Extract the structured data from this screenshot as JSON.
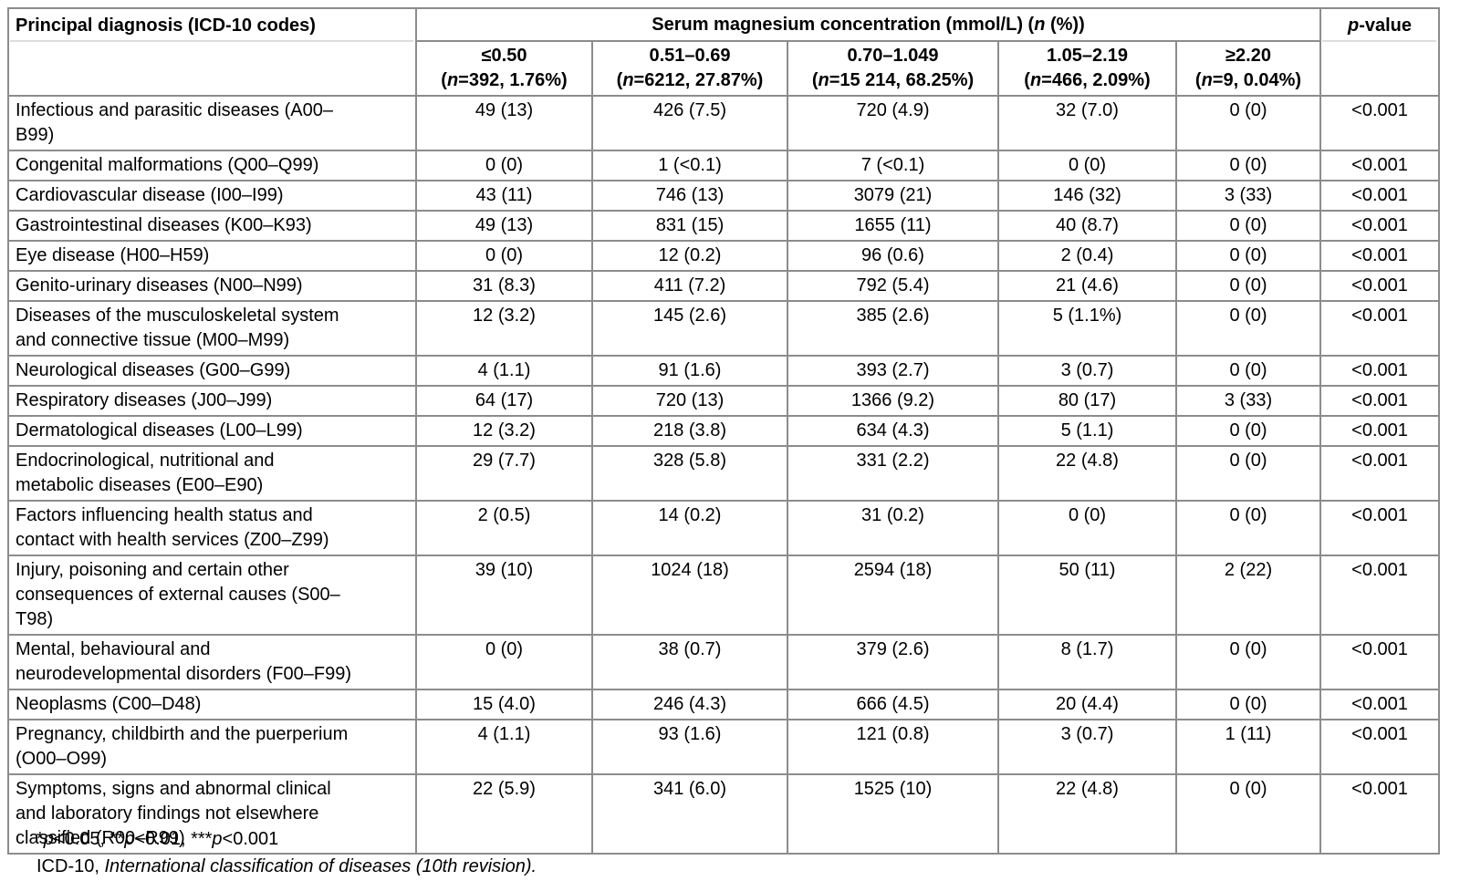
{
  "table": {
    "corner_header": "Principal diagnosis (ICD-10 codes)",
    "group_header": "Serum magnesium concentration (mmol/L) (_n_ (%))",
    "pvalue_header": "_p_-value",
    "columns": [
      "≤0.50\n(_n_=392, 1.76%)",
      "0.51–0.69\n(_n_=6212, 27.87%)",
      "0.70–1.049\n(_n_=15 214, 68.25%)",
      "1.05–2.19\n(_n_=466, 2.09%)",
      "≥2.20\n(_n_=9, 0.04%)"
    ],
    "rows": [
      {
        "diagnosis": "Infectious and parasitic diseases (A00–\nB99)",
        "values": [
          "49 (13)",
          "426 (7.5)",
          "720 (4.9)",
          "32 (7.0)",
          "0 (0)"
        ],
        "pvalue": "<0.001"
      },
      {
        "diagnosis": "Congenital malformations (Q00–Q99)",
        "values": [
          "0 (0)",
          "1 (<0.1)",
          "7 (<0.1)",
          "0 (0)",
          "0 (0)"
        ],
        "pvalue": "<0.001"
      },
      {
        "diagnosis": "Cardiovascular disease (I00–I99)",
        "values": [
          "43 (11)",
          "746 (13)",
          "3079 (21)",
          "146 (32)",
          "3 (33)"
        ],
        "pvalue": "<0.001"
      },
      {
        "diagnosis": "Gastrointestinal diseases (K00–K93)",
        "values": [
          "49 (13)",
          "831 (15)",
          "1655 (11)",
          "40 (8.7)",
          "0 (0)"
        ],
        "pvalue": "<0.001"
      },
      {
        "diagnosis": "Eye disease (H00–H59)",
        "values": [
          "0 (0)",
          "12 (0.2)",
          "96 (0.6)",
          "2 (0.4)",
          "0 (0)"
        ],
        "pvalue": "<0.001"
      },
      {
        "diagnosis": "Genito-urinary diseases (N00–N99)",
        "values": [
          "31 (8.3)",
          "411 (7.2)",
          "792 (5.4)",
          "21 (4.6)",
          "0 (0)"
        ],
        "pvalue": "<0.001"
      },
      {
        "diagnosis": "Diseases of the musculoskeletal system\nand connective tissue (M00–M99)",
        "values": [
          "12 (3.2)",
          "145 (2.6)",
          "385 (2.6)",
          "5 (1.1%)",
          "0 (0)"
        ],
        "pvalue": "<0.001"
      },
      {
        "diagnosis": "Neurological diseases (G00–G99)",
        "values": [
          "4 (1.1)",
          "91 (1.6)",
          "393 (2.7)",
          "3 (0.7)",
          "0 (0)"
        ],
        "pvalue": "<0.001"
      },
      {
        "diagnosis": "Respiratory diseases (J00–J99)",
        "values": [
          "64 (17)",
          "720 (13)",
          "1366 (9.2)",
          "80 (17)",
          "3 (33)"
        ],
        "pvalue": "<0.001"
      },
      {
        "diagnosis": "Dermatological diseases (L00–L99)",
        "values": [
          "12 (3.2)",
          "218 (3.8)",
          "634 (4.3)",
          "5 (1.1)",
          "0 (0)"
        ],
        "pvalue": "<0.001"
      },
      {
        "diagnosis": "Endocrinological, nutritional and\nmetabolic diseases (E00–E90)",
        "values": [
          "29 (7.7)",
          "328 (5.8)",
          "331 (2.2)",
          "22 (4.8)",
          "0 (0)"
        ],
        "pvalue": "<0.001"
      },
      {
        "diagnosis": "Factors influencing health status and\ncontact with health services (Z00–Z99)",
        "values": [
          "2 (0.5)",
          "14 (0.2)",
          "31 (0.2)",
          "0 (0)",
          "0 (0)"
        ],
        "pvalue": "<0.001"
      },
      {
        "diagnosis": "Injury, poisoning and certain other\nconsequences of external causes (S00–\nT98)",
        "values": [
          "39 (10)",
          "1024 (18)",
          "2594 (18)",
          "50 (11)",
          "2 (22)"
        ],
        "pvalue": "<0.001"
      },
      {
        "diagnosis": "Mental, behavioural and\nneurodevelopmental disorders (F00–F99)",
        "values": [
          "0 (0)",
          "38 (0.7)",
          "379 (2.6)",
          "8 (1.7)",
          "0 (0)"
        ],
        "pvalue": "<0.001"
      },
      {
        "diagnosis": "Neoplasms (C00–D48)",
        "values": [
          "15 (4.0)",
          "246 (4.3)",
          "666 (4.5)",
          "20 (4.4)",
          "0 (0)"
        ],
        "pvalue": "<0.001"
      },
      {
        "diagnosis": "Pregnancy, childbirth and the puerperium\n(O00–O99)",
        "values": [
          "4 (1.1)",
          "93 (1.6)",
          "121 (0.8)",
          "3 (0.7)",
          "1 (11)"
        ],
        "pvalue": "<0.001"
      },
      {
        "diagnosis": "Symptoms, signs and abnormal clinical\nand laboratory findings not elsewhere\nclassified (R00–R99)",
        "values": [
          "22 (5.9)",
          "341 (6.0)",
          "1525 (10)",
          "22 (4.8)",
          "0 (0)"
        ],
        "pvalue": "<0.001"
      }
    ]
  },
  "footnotes": [
    "*_p_<0.05, **_p_<0.01, ***_p_<0.001",
    "ICD-10, _International classification of diseases (10th revision)._"
  ],
  "colors": {
    "border": "#8c8c8c",
    "text": "#000000",
    "background": "#ffffff"
  }
}
